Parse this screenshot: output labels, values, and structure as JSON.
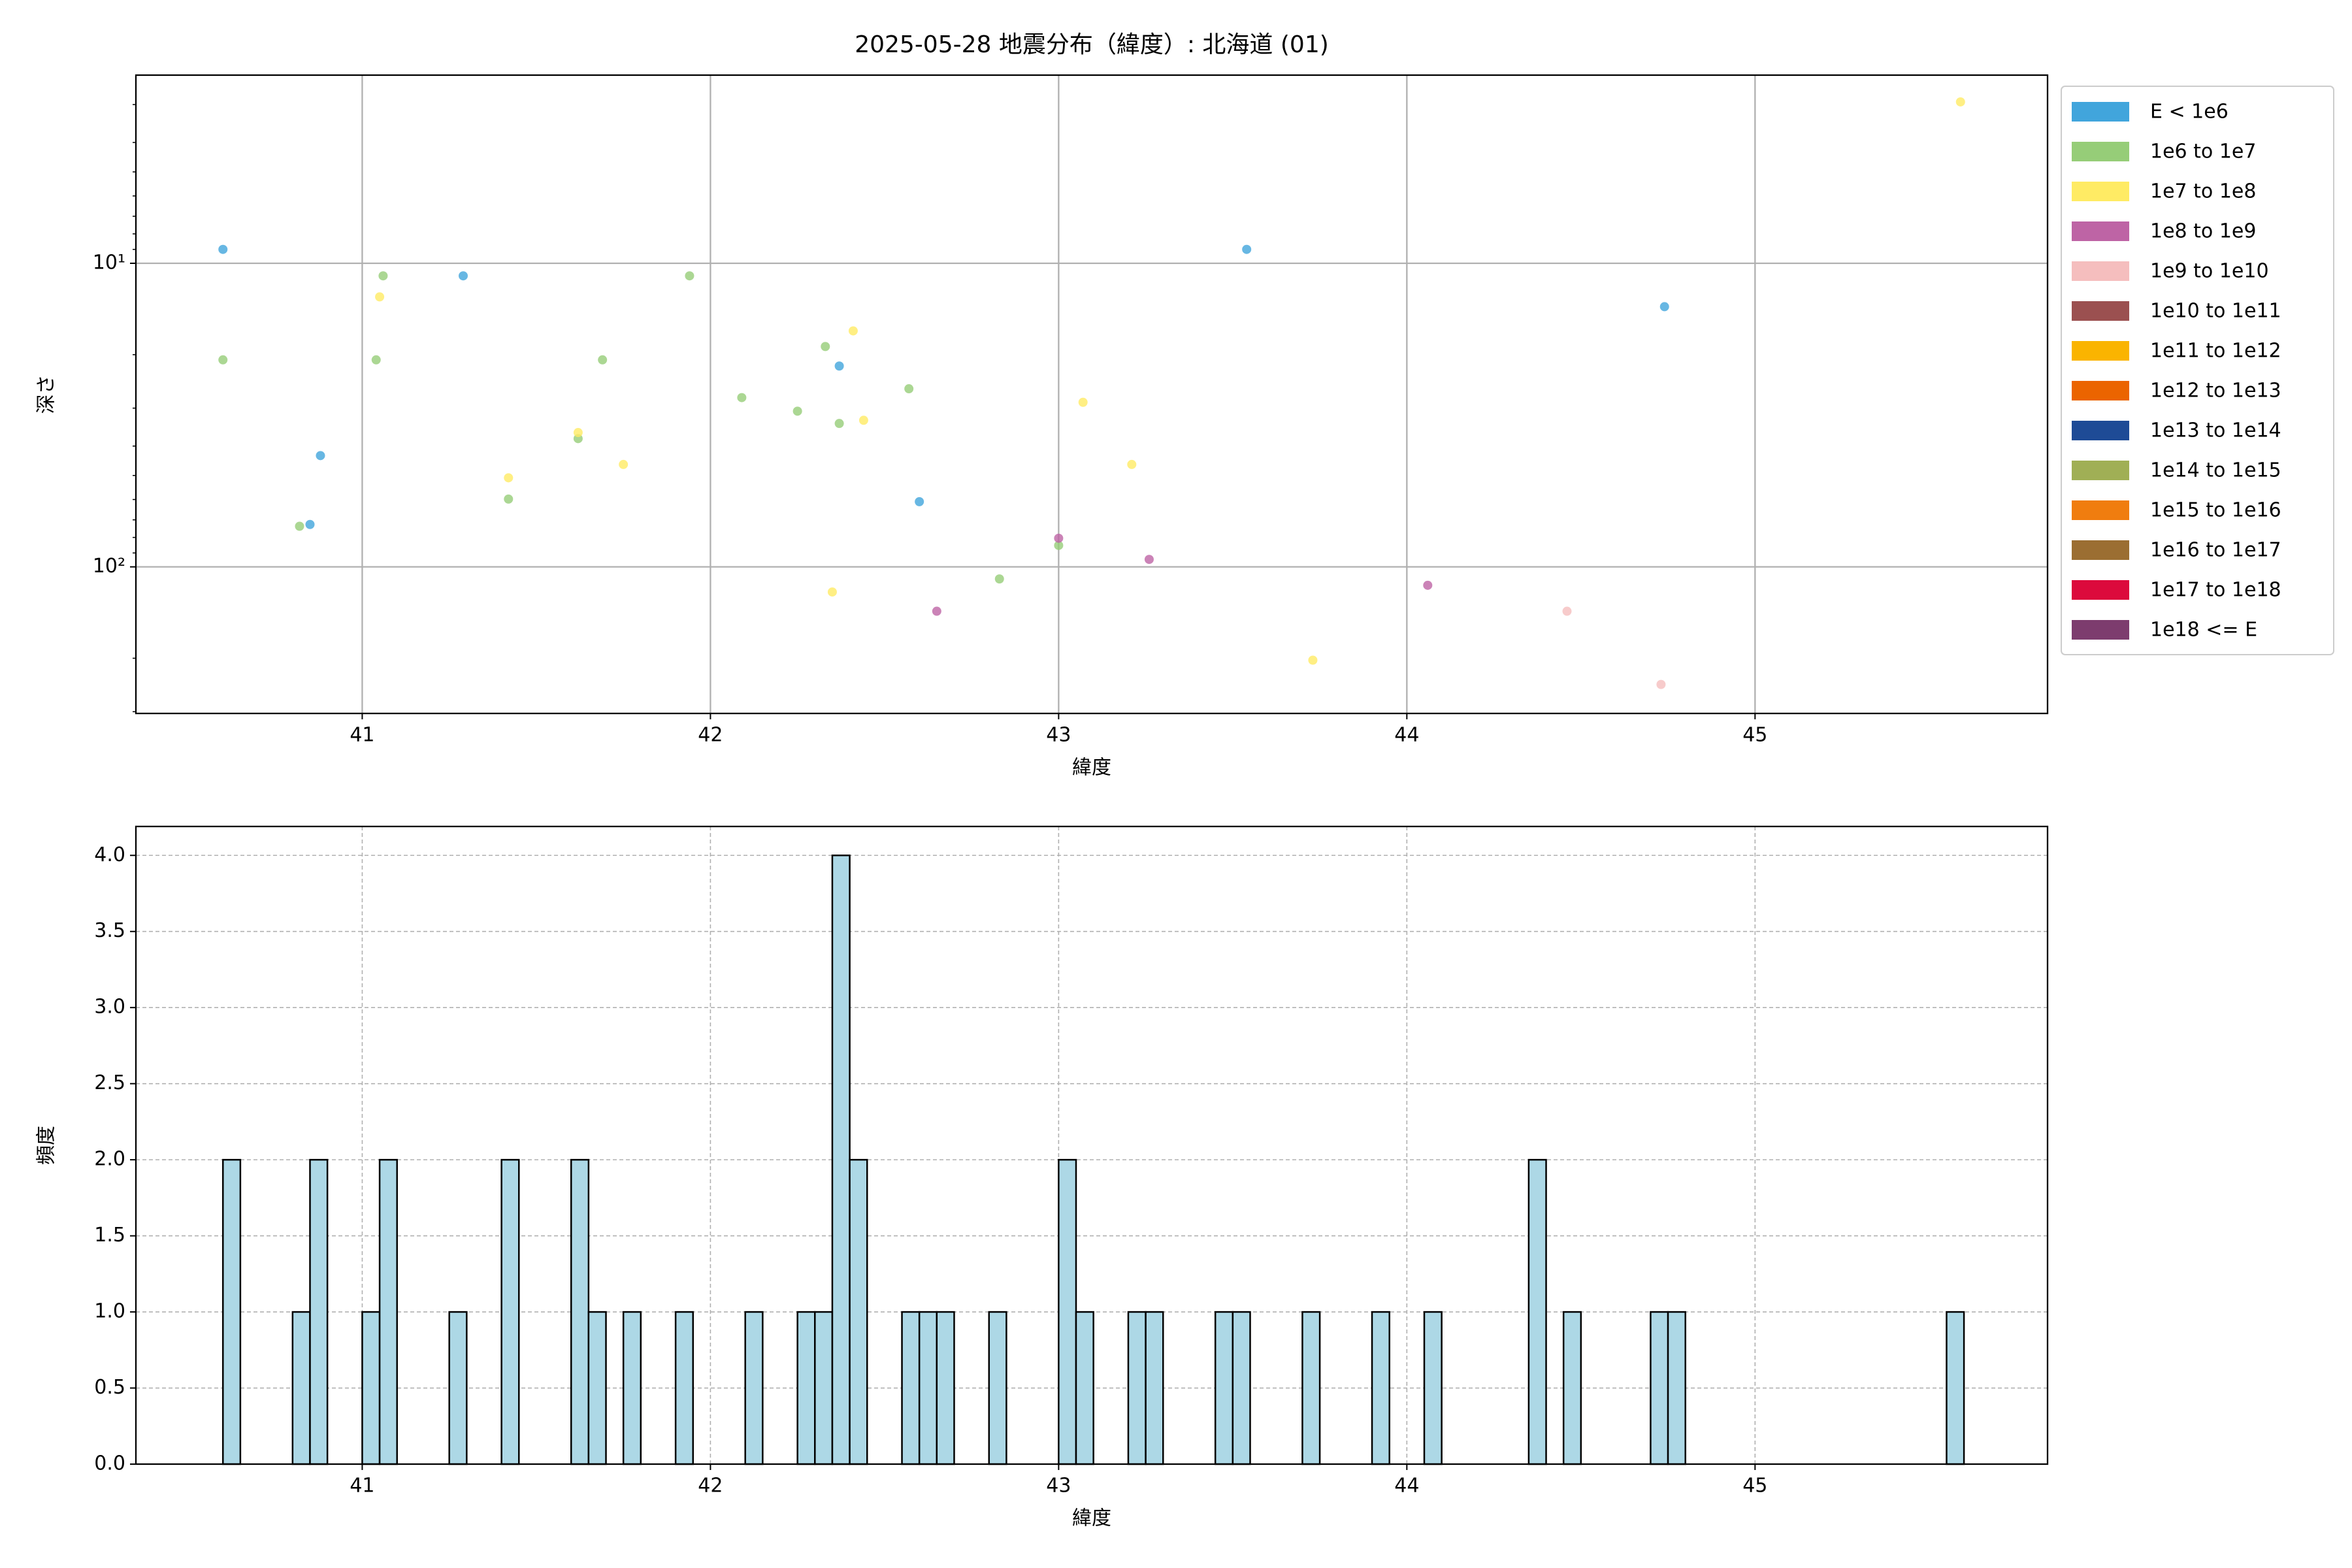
{
  "chart_data": [
    {
      "type": "scatter",
      "title": "2025-05-28 地震分布（緯度）: 北海道 (01)",
      "xlabel": "緯度",
      "ylabel": "深さ",
      "xlim": [
        40.35,
        45.84
      ],
      "xticks": [
        41,
        42,
        43,
        44,
        45
      ],
      "ylim": [
        304,
        2.4
      ],
      "yscale": "log",
      "yticks": [
        {
          "value": 10,
          "label": "10¹"
        },
        {
          "value": 100,
          "label": "10²"
        }
      ],
      "grid": true,
      "legend": "outside upper right",
      "series": [
        {
          "name": "E < 1e6",
          "color": "#41a5dc",
          "x": [
            40.6,
            41.29,
            40.88,
            40.85,
            42.37,
            42.6,
            43.54,
            44.74
          ],
          "values": [
            9,
            11,
            43,
            72.5,
            21.8,
            61,
            9,
            13.9
          ]
        },
        {
          "name": "1e6 to 1e7",
          "color": "#96cd78",
          "x": [
            40.6,
            41.06,
            41.04,
            40.82,
            41.42,
            41.62,
            41.69,
            41.94,
            42.09,
            42.25,
            42.33,
            42.37,
            42.57,
            42.83,
            43.0
          ],
          "values": [
            20.8,
            11,
            20.8,
            73.5,
            59.8,
            37.8,
            20.8,
            11,
            27.7,
            30.7,
            18.8,
            33.7,
            25.9,
            109.6,
            85
          ]
        },
        {
          "name": "1e7 to 1e8",
          "color": "#ffeb64",
          "x": [
            41.05,
            41.42,
            41.62,
            41.75,
            42.41,
            42.44,
            42.35,
            43.07,
            43.21,
            43.73,
            45.59
          ],
          "values": [
            12.9,
            50.9,
            36.1,
            46,
            16.7,
            32.9,
            121,
            28.7,
            46,
            203,
            2.94
          ]
        },
        {
          "name": "1e8 to 1e9",
          "color": "#be64a5",
          "x": [
            43.0,
            43.26,
            42.65,
            44.06
          ],
          "values": [
            80.5,
            94.5,
            140,
            115
          ]
        },
        {
          "name": "1e9 to 1e10",
          "color": "#f5bebe",
          "x": [
            44.46,
            44.73
          ],
          "values": [
            140,
            244
          ]
        },
        {
          "name": "1e10 to 1e11",
          "color": "#9b5050",
          "x": [],
          "values": []
        },
        {
          "name": "1e11 to 1e12",
          "color": "#fab400",
          "x": [],
          "values": []
        },
        {
          "name": "1e12 to 1e13",
          "color": "#eb6400",
          "x": [],
          "values": []
        },
        {
          "name": "1e13 to 1e14",
          "color": "#1e4b96",
          "x": [],
          "values": []
        },
        {
          "name": "1e14 to 1e15",
          "color": "#a0af55",
          "x": [],
          "values": []
        },
        {
          "name": "1e15 to 1e16",
          "color": "#f07d0f",
          "x": [],
          "values": []
        },
        {
          "name": "1e16 to 1e17",
          "color": "#9b6e32",
          "x": [],
          "values": []
        },
        {
          "name": "1e17 to 1e18",
          "color": "#dc0a3c",
          "x": [],
          "values": []
        },
        {
          "name": "1e18 <= E",
          "color": "#7d3c6e",
          "x": [],
          "values": []
        }
      ]
    },
    {
      "type": "histogram",
      "xlabel": "緯度",
      "ylabel": "頻度",
      "color": "#add8e6",
      "edgecolor": "#000000",
      "xlim": [
        40.35,
        45.84
      ],
      "xticks": [
        41,
        42,
        43,
        44,
        45
      ],
      "ylim": [
        0,
        4.19
      ],
      "yticks": [
        {
          "value": 0,
          "label": "0.0"
        },
        {
          "value": 0.5,
          "label": "0.5"
        },
        {
          "value": 1,
          "label": "1.0"
        },
        {
          "value": 1.5,
          "label": "1.5"
        },
        {
          "value": 2,
          "label": "2.0"
        },
        {
          "value": 2.5,
          "label": "2.5"
        },
        {
          "value": 3,
          "label": "3.0"
        },
        {
          "value": 3.5,
          "label": "3.5"
        },
        {
          "value": 4,
          "label": "4.0"
        }
      ],
      "grid": true,
      "bins": [
        40.6,
        40.65,
        40.7,
        40.75,
        40.8,
        40.85,
        40.9,
        40.95,
        41.0,
        41.05,
        41.1,
        41.15,
        41.2,
        41.25,
        41.3,
        41.35,
        41.4,
        41.45,
        41.5,
        41.55,
        41.6,
        41.65,
        41.7,
        41.75,
        41.8,
        41.85,
        41.9,
        41.95,
        42.0,
        42.05,
        42.1,
        42.15,
        42.2,
        42.25,
        42.3,
        42.35,
        42.4,
        42.45,
        42.5,
        42.55,
        42.6,
        42.65,
        42.7,
        42.75,
        42.8,
        42.85,
        42.9,
        42.95,
        43.0,
        43.05,
        43.1,
        43.15,
        43.2,
        43.25,
        43.3,
        43.35,
        43.4,
        43.45,
        43.5,
        43.55,
        43.6,
        43.65,
        43.7,
        43.75,
        43.8,
        43.85,
        43.9,
        43.95,
        44.0,
        44.05,
        44.1,
        44.15,
        44.2,
        44.25,
        44.3,
        44.35,
        44.4,
        44.45,
        44.5,
        44.55,
        44.6,
        44.65,
        44.7,
        44.75,
        44.8,
        44.85,
        44.9,
        44.95,
        45.0,
        45.05,
        45.1,
        45.15,
        45.2,
        45.25,
        45.3,
        45.35,
        45.4,
        45.45,
        45.5,
        45.55,
        45.6
      ],
      "values": [
        2,
        0,
        0,
        0,
        1,
        2,
        0,
        0,
        1,
        2,
        0,
        0,
        0,
        1,
        0,
        0,
        2,
        0,
        0,
        0,
        2,
        1,
        0,
        1,
        0,
        0,
        1,
        0,
        0,
        0,
        1,
        0,
        0,
        1,
        1,
        4,
        2,
        0,
        0,
        1,
        1,
        1,
        0,
        0,
        1,
        0,
        0,
        0,
        2,
        1,
        0,
        0,
        1,
        1,
        0,
        0,
        0,
        1,
        1,
        0,
        0,
        0,
        1,
        0,
        0,
        0,
        1,
        0,
        0,
        1,
        0,
        0,
        0,
        0,
        0,
        2,
        0,
        1,
        0,
        0,
        0,
        0,
        1,
        1,
        0,
        0,
        0,
        0,
        0,
        0,
        0,
        0,
        0,
        0,
        0,
        0,
        0,
        0,
        0,
        1
      ]
    }
  ]
}
